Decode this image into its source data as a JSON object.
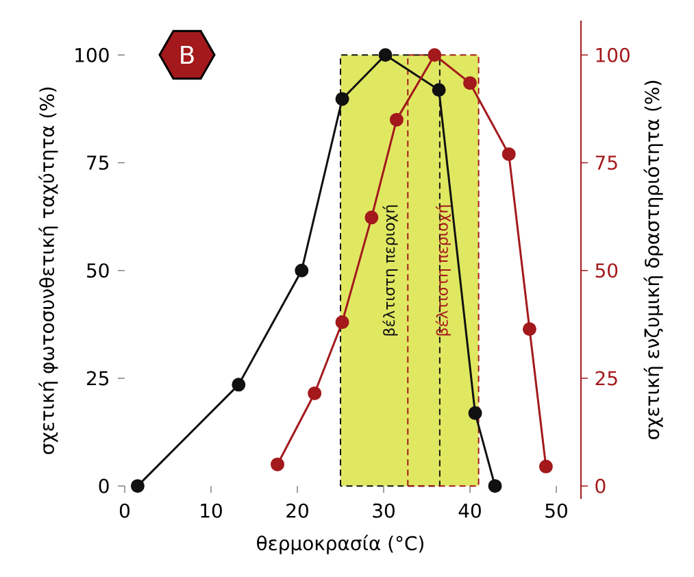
{
  "chart_data": {
    "type": "line",
    "xlabel": "θερμοκρασία (°C)",
    "ylabel": "σχετική φωτοσυνθετική ταχύτητα (%)",
    "y2label": "σχετική ενζυμική δραστηριότητα (%)",
    "annotations": [
      "B"
    ],
    "xlim": [
      0,
      50
    ],
    "xticks": [
      0,
      10,
      20,
      30,
      40,
      50
    ],
    "ylim": [
      0,
      100
    ],
    "yticks": [
      0,
      25,
      50,
      75,
      100
    ],
    "y2lim": [
      -3,
      108
    ],
    "y2ticks": [
      0,
      25,
      50,
      75,
      100
    ],
    "marker": "circle",
    "line_style": "solid",
    "series": [
      {
        "color": "#111111",
        "x": [
          1.5,
          13.2,
          20.5,
          25.2,
          30.2,
          36.4,
          40.6,
          42.9
        ],
        "values": [
          0,
          23.5,
          50,
          89.8,
          100,
          91.9,
          16.9,
          0
        ]
      },
      {
        "color": "#a3191c",
        "axis": "y2",
        "x": [
          17.7,
          22.0,
          25.2,
          28.6,
          31.5,
          35.9,
          40.0,
          44.5,
          46.9,
          48.8
        ],
        "values": [
          5,
          21.5,
          38,
          62.3,
          85,
          100,
          93.5,
          77,
          36.4,
          4.5
        ]
      }
    ],
    "bands": [
      {
        "axis": "x",
        "from": 25,
        "to": 36.5,
        "label": "βέλτιστη περιοχή",
        "color": "#e0e862"
      },
      {
        "axis": "x",
        "from": 32.8,
        "to": 41,
        "label": "βέλτιστη περιοχή",
        "color": "#e0e862"
      }
    ]
  }
}
